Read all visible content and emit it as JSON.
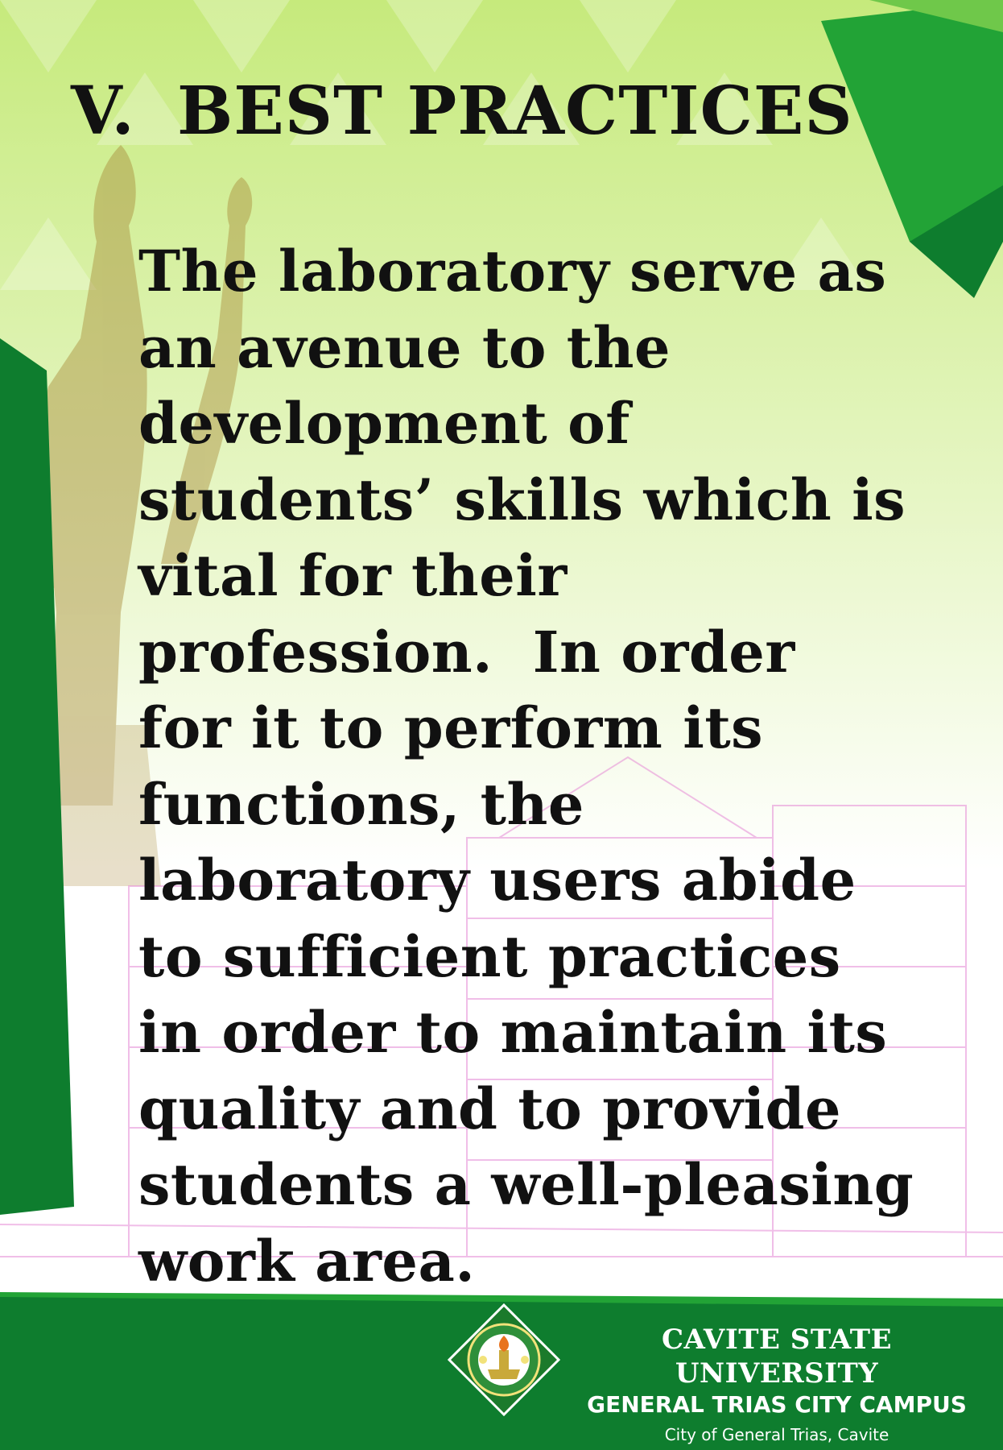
{
  "slide": {
    "heading_number": "V.",
    "heading_title": "BEST PRACTICES",
    "body_lines": [
      "The laboratory serve as",
      "an avenue to the",
      "development of",
      "students’ skills which is",
      "vital for their",
      "profession.  In order",
      "for it to perform its",
      "functions, the",
      "laboratory users abide",
      "to sufficient practices",
      "in order to maintain its",
      "quality and to provide",
      "students a well-pleasing",
      "work area."
    ]
  },
  "footer": {
    "university": "CAVITE STATE UNIVERSITY",
    "campus": "GENERAL TRIAS CITY CAMPUS",
    "location": "City of General Trias, Cavite",
    "seal_icon": "university-seal-icon"
  },
  "colors": {
    "brand_green": "#0e7d2e",
    "light_green": "#d7f0a0",
    "bright_green": "#22a336",
    "text": "#111111"
  }
}
